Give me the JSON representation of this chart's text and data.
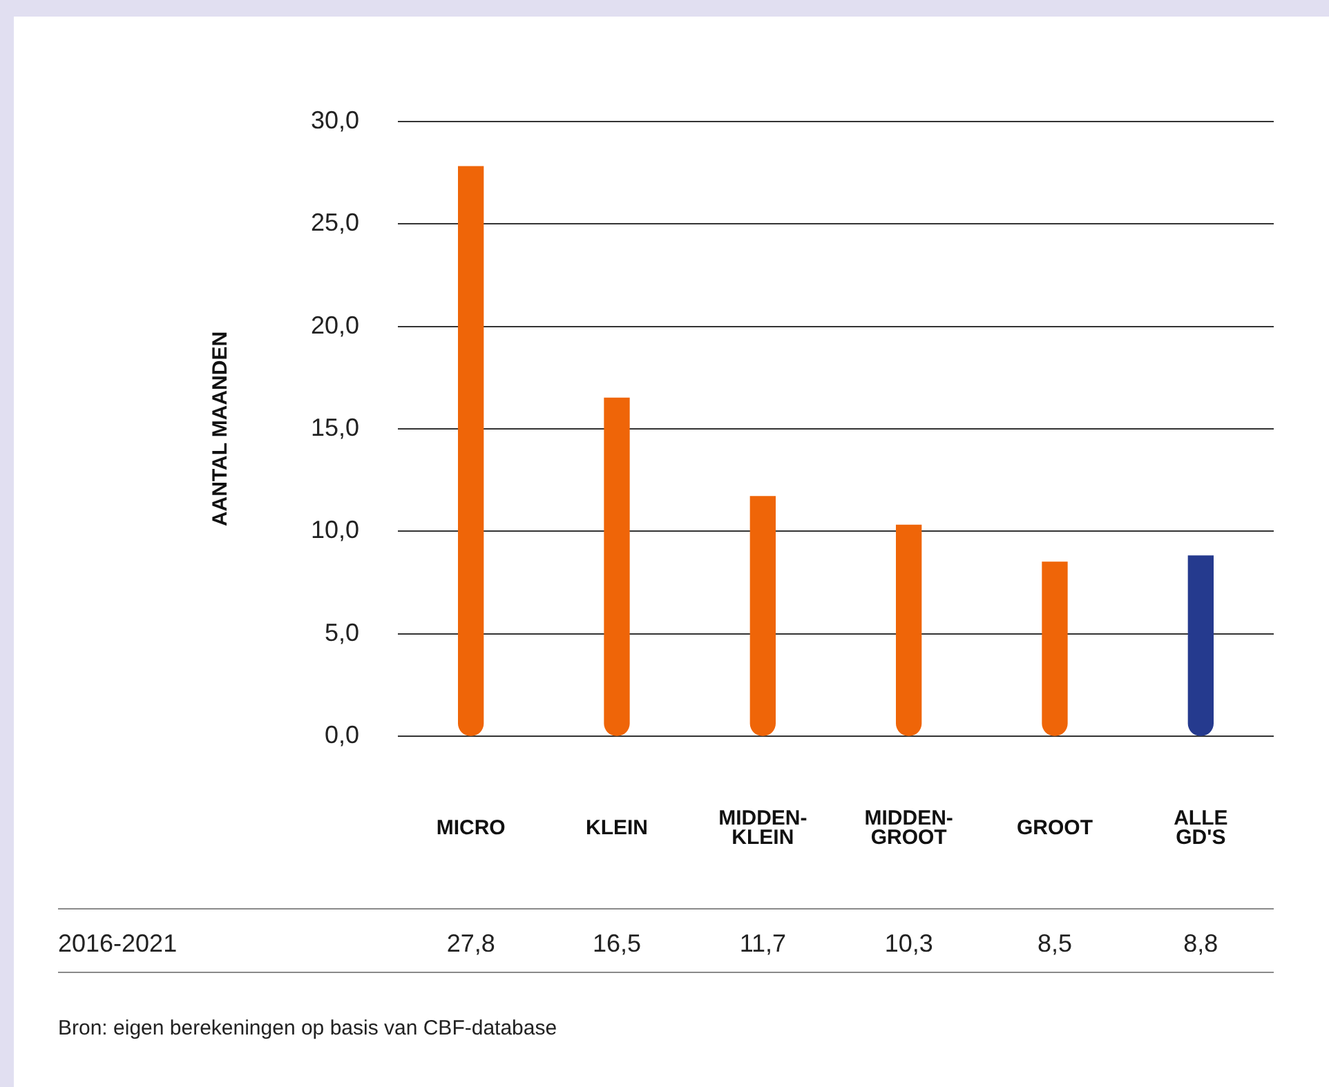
{
  "chart_data": {
    "type": "bar",
    "ylabel": "AANTAL MAANDEN",
    "categories": [
      "MICRO",
      "KLEIN",
      "MIDDEN-KLEIN",
      "MIDDEN-GROOT",
      "GROOT",
      "ALLE GD'S"
    ],
    "series": [
      {
        "name": "2016-2021",
        "values": [
          27.8,
          16.5,
          11.7,
          10.3,
          8.5,
          8.8
        ],
        "colors": [
          "#ef6508",
          "#ef6508",
          "#ef6508",
          "#ef6508",
          "#ef6508",
          "#253a8e"
        ],
        "value_labels": [
          "27,8",
          "16,5",
          "11,7",
          "10,3",
          "8,5",
          "8,8"
        ]
      }
    ],
    "ylim": [
      0,
      30
    ],
    "yticks": [
      {
        "value": 0,
        "label": "0,0"
      },
      {
        "value": 5,
        "label": "5,0"
      },
      {
        "value": 10,
        "label": "10,0"
      },
      {
        "value": 15,
        "label": "15,0"
      },
      {
        "value": 20,
        "label": "20,0"
      },
      {
        "value": 25,
        "label": "25,0"
      },
      {
        "value": 30,
        "label": "30,0"
      }
    ],
    "grid": "y",
    "legend": false,
    "annotations": [
      "Bron: eigen berekeningen op basis van CBF-database"
    ]
  }
}
